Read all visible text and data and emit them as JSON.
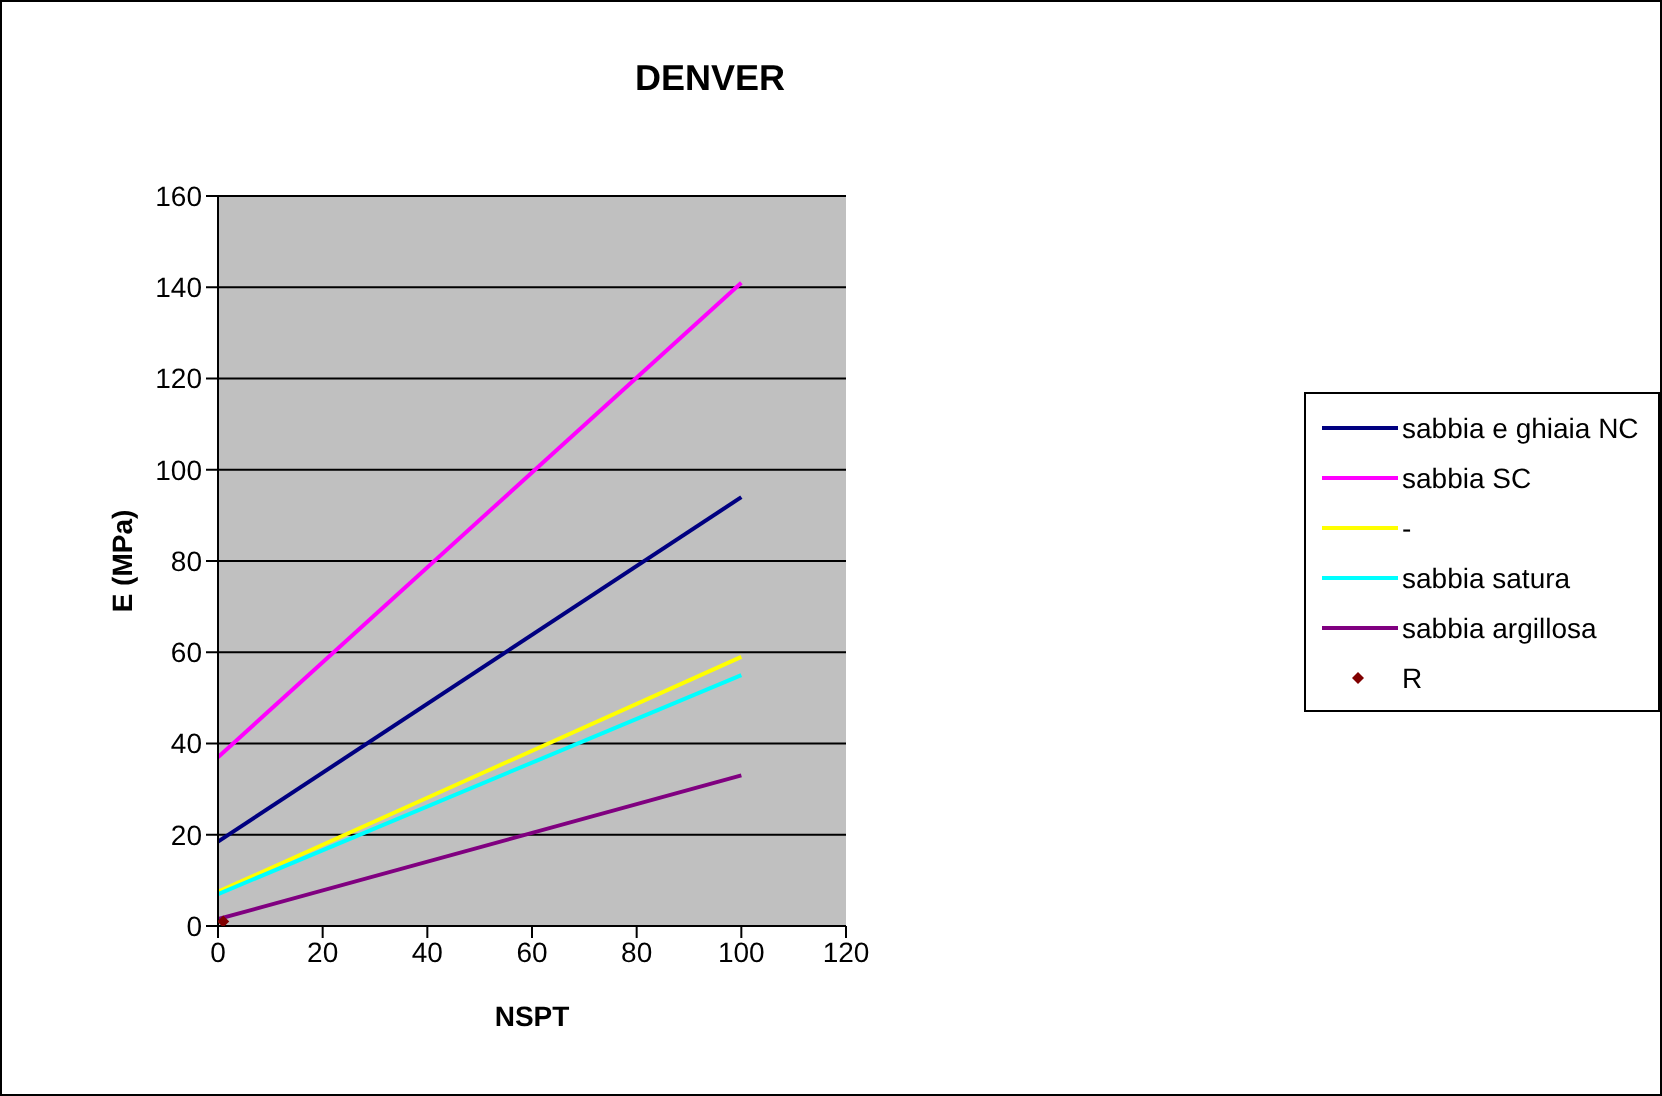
{
  "chart_data": {
    "type": "line",
    "title": "DENVER",
    "xlabel": "NSPT",
    "ylabel": "E (MPa)",
    "xlim": [
      0,
      120
    ],
    "xticks": [
      0,
      20,
      40,
      60,
      80,
      100,
      120
    ],
    "ylim": [
      0,
      160
    ],
    "yticks": [
      0,
      20,
      40,
      60,
      80,
      100,
      120,
      140,
      160
    ],
    "grid": "y",
    "legend": "right",
    "marker": "none",
    "series": [
      {
        "name": "sabbia e ghiaia NC",
        "color": "#000080",
        "x": [
          0,
          100
        ],
        "values": [
          18.5,
          94
        ]
      },
      {
        "name": "sabbia SC",
        "color": "#ff00ff",
        "x": [
          0,
          100
        ],
        "values": [
          37,
          141
        ]
      },
      {
        "name": "-",
        "color": "#ffff00",
        "x": [
          0,
          100
        ],
        "values": [
          7.5,
          59
        ]
      },
      {
        "name": "sabbia satura",
        "color": "#00ffff",
        "x": [
          0,
          100
        ],
        "values": [
          7,
          55
        ]
      },
      {
        "name": "sabbia argillosa",
        "color": "#800080",
        "x": [
          0,
          100
        ],
        "values": [
          1.5,
          33
        ]
      },
      {
        "name": "R",
        "color": "#800000",
        "type": "scatter",
        "marker": "diamond",
        "x": [
          1
        ],
        "values": [
          1
        ]
      }
    ]
  }
}
